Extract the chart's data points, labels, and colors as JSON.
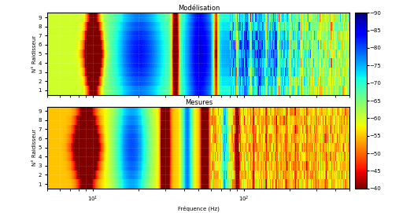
{
  "title_top": "Modélisation",
  "title_bottom": "Mesures",
  "xlabel": "Fréquence (Hz)",
  "ylabel": "N° Raidisseur",
  "freq_min": 5,
  "freq_max": 500,
  "n_stiffeners": 9,
  "n_freq": 400,
  "colormap": "jet",
  "vmin": -90,
  "vmax": -40,
  "cbar_ticks": [
    -40,
    -45,
    -50,
    -55,
    -60,
    -65,
    -70,
    -75,
    -80,
    -85,
    -90
  ],
  "figsize": [
    5.26,
    2.71
  ],
  "dpi": 100
}
